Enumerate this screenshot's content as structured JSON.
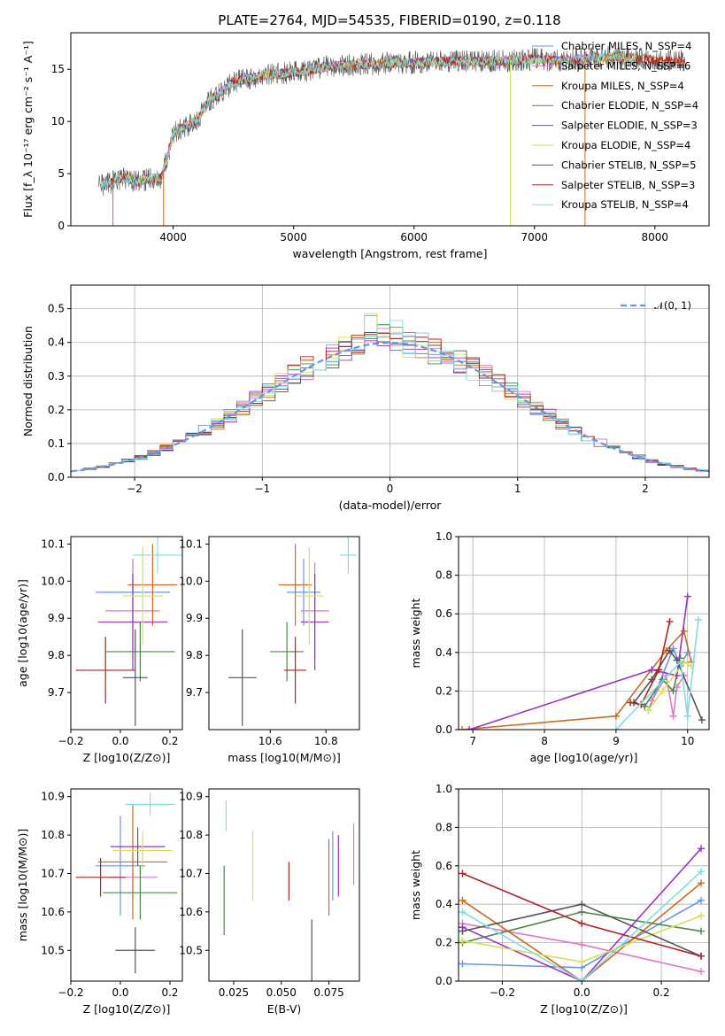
{
  "figure": {
    "title": "PLATE=2764, MJD=54535, FIBERID=0190, z=0.118",
    "colors": {
      "Chabrier MILES": "#6495ed",
      "Salpeter MILES": "#e377c2",
      "Kroupa MILES": "#d2691e",
      "Chabrier ELODIE": "#4a8a4a",
      "Salpeter ELODIE": "#9932cc",
      "Kroupa ELODIE": "#d4e157",
      "Chabrier STELIB": "#555555",
      "Salpeter STELIB": "#b22222",
      "Kroupa STELIB": "#7fdfdf",
      "normal": "#6495ed"
    }
  },
  "chart_data": [
    {
      "id": "spectrum",
      "type": "line",
      "xlabel": "wavelength [Angstrom, rest frame]",
      "ylabel": "Flux [f_λ 10⁻¹⁷ erg cm⁻² s⁻¹ A⁻¹]",
      "xlim": [
        3150,
        8450
      ],
      "ylim": [
        0,
        18.5
      ],
      "xticks": [
        4000,
        5000,
        6000,
        7000,
        8000
      ],
      "yticks": [
        0,
        5,
        10,
        15
      ],
      "grid": false,
      "legend_position": "upper right",
      "legend": [
        "Chabrier MILES, N_SSP=4",
        "Salpeter MILES, N_SSP=6",
        "Kroupa MILES, N_SSP=4",
        "Chabrier ELODIE, N_SSP=4",
        "Salpeter ELODIE, N_SSP=3",
        "Kroupa ELODIE, N_SSP=4",
        "Chabrier STELIB, N_SSP=5",
        "Salpeter STELIB, N_SSP=3",
        "Kroupa STELIB, N_SSP=4"
      ],
      "continuum": {
        "x": [
          3380,
          3500,
          3600,
          3700,
          3800,
          3900,
          3950,
          4000,
          4100,
          4200,
          4300,
          4400,
          4500,
          4700,
          4900,
          5100,
          5300,
          5500,
          5700,
          5900,
          6100,
          6300,
          6500,
          6700,
          6900,
          7000,
          7200,
          7400,
          7600,
          7800,
          8000,
          8200
        ],
        "y": [
          3.8,
          4.2,
          4.6,
          4.2,
          4.5,
          4.6,
          6.5,
          8.8,
          9.5,
          10.2,
          12.0,
          12.8,
          13.8,
          14.3,
          14.6,
          14.8,
          15.3,
          15.4,
          15.5,
          15.6,
          15.7,
          15.8,
          15.8,
          15.8,
          15.9,
          16.0,
          15.8,
          16.0,
          16.2,
          16.1,
          15.9,
          15.8
        ]
      },
      "dropouts": [
        {
          "x": 3500,
          "y": 0
        },
        {
          "x": 3920,
          "y": 0
        },
        {
          "x": 6800,
          "y": 0
        },
        {
          "x": 7420,
          "y": 0
        }
      ]
    },
    {
      "id": "residuals",
      "type": "line",
      "xlabel": "(data-model)/error",
      "ylabel": "Normed distribution",
      "xlim": [
        -2.5,
        2.5
      ],
      "ylim": [
        0,
        0.57
      ],
      "xticks": [
        -2,
        -1,
        0,
        1,
        2
      ],
      "yticks": [
        0.0,
        0.1,
        0.2,
        0.3,
        0.4,
        0.5
      ],
      "grid": true,
      "legend": [
        "𝒩(0, 1)"
      ],
      "legend_position": "upper right",
      "bin_width": 0.1
    },
    {
      "id": "age-vs-Z",
      "type": "scatter",
      "xlabel": "Z [log10(Z/Z⊙)]",
      "ylabel": "age  [log10(age/yr)]",
      "xlim": [
        -0.2,
        0.25
      ],
      "ylim": [
        9.6,
        10.12
      ],
      "xticks": [
        -0.2,
        0.0,
        0.2
      ],
      "xtick_labels": [
        "−0.2",
        "0.0",
        "0.2"
      ],
      "yticks": [
        9.7,
        9.8,
        9.9,
        10.0,
        10.1
      ],
      "grid": false,
      "points": [
        {
          "model": "Chabrier MILES",
          "x": 0.05,
          "y": 9.97,
          "xerr": 0.15,
          "yerr": 0.09
        },
        {
          "model": "Salpeter MILES",
          "x": 0.05,
          "y": 9.92,
          "xerr": 0.11,
          "yerr": 0.13
        },
        {
          "model": "Kroupa MILES",
          "x": 0.13,
          "y": 9.99,
          "xerr": 0.1,
          "yerr": 0.11
        },
        {
          "model": "Chabrier ELODIE",
          "x": 0.08,
          "y": 9.81,
          "xerr": 0.14,
          "yerr": 0.08
        },
        {
          "model": "Salpeter ELODIE",
          "x": 0.05,
          "y": 9.89,
          "xerr": 0.14,
          "yerr": 0.13
        },
        {
          "model": "Kroupa ELODIE",
          "x": 0.09,
          "y": 9.96,
          "xerr": 0.08,
          "yerr": 0.13
        },
        {
          "model": "Chabrier STELIB",
          "x": 0.06,
          "y": 9.74,
          "xerr": 0.05,
          "yerr": 0.13
        },
        {
          "model": "Salpeter STELIB",
          "x": -0.06,
          "y": 9.76,
          "xerr": 0.12,
          "yerr": 0.09
        },
        {
          "model": "Kroupa STELIB",
          "x": 0.15,
          "y": 10.07,
          "xerr": 0.1,
          "yerr": 0.05
        }
      ]
    },
    {
      "id": "age-vs-mass",
      "type": "scatter",
      "xlabel": "mass [log10(M/M⊙)]",
      "ylabel": "",
      "xlim": [
        10.38,
        10.92
      ],
      "ylim": [
        9.6,
        10.12
      ],
      "xticks": [
        10.6,
        10.8
      ],
      "yticks": [
        9.7,
        9.8,
        9.9,
        10.0,
        10.1
      ],
      "grid": false,
      "points": [
        {
          "model": "Chabrier MILES",
          "x": 10.72,
          "y": 9.97,
          "xerr": 0.06,
          "yerr": 0.09
        },
        {
          "model": "Salpeter MILES",
          "x": 10.76,
          "y": 9.92,
          "xerr": 0.05,
          "yerr": 0.13
        },
        {
          "model": "Kroupa MILES",
          "x": 10.69,
          "y": 9.99,
          "xerr": 0.06,
          "yerr": 0.11
        },
        {
          "model": "Chabrier ELODIE",
          "x": 10.66,
          "y": 9.81,
          "xerr": 0.06,
          "yerr": 0.08
        },
        {
          "model": "Salpeter ELODIE",
          "x": 10.76,
          "y": 9.89,
          "xerr": 0.05,
          "yerr": 0.13
        },
        {
          "model": "Kroupa ELODIE",
          "x": 10.74,
          "y": 9.96,
          "xerr": 0.05,
          "yerr": 0.13
        },
        {
          "model": "Chabrier STELIB",
          "x": 10.5,
          "y": 9.74,
          "xerr": 0.05,
          "yerr": 0.13
        },
        {
          "model": "Salpeter STELIB",
          "x": 10.69,
          "y": 9.76,
          "xerr": 0.04,
          "yerr": 0.09
        },
        {
          "model": "Kroupa STELIB",
          "x": 10.88,
          "y": 10.07,
          "xerr": 0.03,
          "yerr": 0.05
        }
      ]
    },
    {
      "id": "weight-vs-age",
      "type": "line",
      "xlabel": "age  [log10(age/yr)]",
      "ylabel": "mass weight",
      "xlim": [
        6.8,
        10.3
      ],
      "ylim": [
        0,
        1
      ],
      "xticks": [
        7,
        8,
        9,
        10
      ],
      "yticks": [
        0.0,
        0.2,
        0.4,
        0.6,
        0.8,
        1.0
      ],
      "grid": true,
      "series": [
        {
          "model": "Chabrier MILES",
          "x": [
            9.45,
            9.8,
            9.9,
            10.0
          ],
          "y": [
            0.1,
            0.42,
            0.33,
            0.4
          ]
        },
        {
          "model": "Salpeter MILES",
          "x": [
            9.5,
            9.7,
            9.8,
            9.85,
            9.95
          ],
          "y": [
            0.15,
            0.28,
            0.07,
            0.22,
            0.28
          ]
        },
        {
          "model": "Kroupa MILES",
          "x": [
            6.85,
            9.0,
            9.7,
            9.95,
            10.05
          ],
          "y": [
            0.0,
            0.07,
            0.41,
            0.51,
            0.35
          ]
        },
        {
          "model": "Chabrier ELODIE",
          "x": [
            9.4,
            9.65,
            9.8,
            9.9
          ],
          "y": [
            0.12,
            0.26,
            0.2,
            0.37
          ]
        },
        {
          "model": "Salpeter ELODIE",
          "x": [
            6.95,
            9.5,
            9.85,
            10.0
          ],
          "y": [
            0.0,
            0.31,
            0.28,
            0.69
          ]
        },
        {
          "model": "Kroupa ELODIE",
          "x": [
            9.45,
            9.65,
            9.95,
            10.05
          ],
          "y": [
            0.1,
            0.2,
            0.35,
            0.33
          ]
        },
        {
          "model": "Chabrier STELIB",
          "x": [
            9.25,
            9.5,
            9.75,
            9.85,
            10.2
          ],
          "y": [
            0.14,
            0.26,
            0.41,
            0.36,
            0.05
          ]
        },
        {
          "model": "Salpeter STELIB",
          "x": [
            9.2,
            9.35,
            9.6,
            9.75
          ],
          "y": [
            0.14,
            0.13,
            0.31,
            0.56
          ]
        },
        {
          "model": "Kroupa STELIB",
          "x": [
            9.0,
            9.9,
            10.0,
            10.15
          ],
          "y": [
            0.0,
            0.35,
            0.07,
            0.57
          ]
        }
      ]
    },
    {
      "id": "mass-vs-Z",
      "type": "scatter",
      "xlabel": "Z [log10(Z/Z⊙)]",
      "ylabel": "mass [log10(M/M⊙)]",
      "xlim": [
        -0.2,
        0.25
      ],
      "ylim": [
        10.42,
        10.92
      ],
      "xticks": [
        -0.2,
        0.0,
        0.2
      ],
      "xtick_labels": [
        "−0.2",
        "0.0",
        "0.2"
      ],
      "yticks": [
        10.5,
        10.6,
        10.7,
        10.8,
        10.9
      ],
      "grid": false,
      "points": [
        {
          "model": "Chabrier MILES",
          "x": 0.0,
          "y": 10.72,
          "xerr": 0.1,
          "yerr": 0.13
        },
        {
          "model": "Salpeter MILES",
          "x": 0.05,
          "y": 10.69,
          "xerr": 0.1,
          "yerr": 0.06
        },
        {
          "model": "Kroupa MILES",
          "x": 0.05,
          "y": 10.73,
          "xerr": 0.14,
          "yerr": 0.15
        },
        {
          "model": "Chabrier ELODIE",
          "x": 0.08,
          "y": 10.65,
          "xerr": 0.15,
          "yerr": 0.07
        },
        {
          "model": "Salpeter ELODIE",
          "x": 0.07,
          "y": 10.77,
          "xerr": 0.11,
          "yerr": 0.05
        },
        {
          "model": "Kroupa ELODIE",
          "x": 0.09,
          "y": 10.76,
          "xerr": 0.12,
          "yerr": 0.05
        },
        {
          "model": "Chabrier STELIB",
          "x": 0.06,
          "y": 10.5,
          "xerr": 0.08,
          "yerr": 0.06
        },
        {
          "model": "Salpeter STELIB",
          "x": -0.08,
          "y": 10.69,
          "xerr": 0.1,
          "yerr": 0.05
        },
        {
          "model": "Kroupa STELIB",
          "x": 0.12,
          "y": 10.88,
          "xerr": 0.1,
          "yerr": 0.03
        }
      ]
    },
    {
      "id": "mass-vs-ebv",
      "type": "scatter",
      "xlabel": "E(B-V)",
      "ylabel": "",
      "xlim": [
        0.012,
        0.091
      ],
      "ylim": [
        10.42,
        10.92
      ],
      "xticks": [
        0.025,
        0.05,
        0.075
      ],
      "xtick_labels": [
        "0.025",
        "0.050",
        "0.075"
      ],
      "yticks": [
        10.5,
        10.6,
        10.7,
        10.8,
        10.9
      ],
      "grid": false,
      "points": [
        {
          "model": "Chabrier MILES",
          "x": 0.077,
          "y": 10.72,
          "yerr": 0.09
        },
        {
          "model": "Salpeter MILES",
          "x": 0.088,
          "y": 10.75,
          "yerr": 0.08
        },
        {
          "model": "Kroupa MILES",
          "x": 0.075,
          "y": 10.69,
          "yerr": 0.1
        },
        {
          "model": "Chabrier ELODIE",
          "x": 0.02,
          "y": 10.63,
          "yerr": 0.09
        },
        {
          "model": "Salpeter ELODIE",
          "x": 0.08,
          "y": 10.72,
          "yerr": 0.08
        },
        {
          "model": "Kroupa ELODIE",
          "x": 0.035,
          "y": 10.72,
          "yerr": 0.09
        },
        {
          "model": "Chabrier STELIB",
          "x": 0.066,
          "y": 10.5,
          "yerr": 0.08
        },
        {
          "model": "Salpeter STELIB",
          "x": 0.054,
          "y": 10.68,
          "yerr": 0.05
        },
        {
          "model": "Kroupa STELIB",
          "x": 0.021,
          "y": 10.85,
          "yerr": 0.04
        }
      ]
    },
    {
      "id": "weight-vs-Z",
      "type": "line",
      "xlabel": "Z [log10(Z/Z⊙)]",
      "ylabel": "mass weight",
      "xlim": [
        -0.31,
        0.32
      ],
      "ylim": [
        0,
        1
      ],
      "xticks": [
        -0.2,
        0.0,
        0.2
      ],
      "xtick_labels": [
        "−0.2",
        "0.0",
        "0.2"
      ],
      "yticks": [
        0.0,
        0.2,
        0.4,
        0.6,
        0.8,
        1.0
      ],
      "grid": true,
      "series": [
        {
          "model": "Chabrier MILES",
          "x": [
            -0.3,
            0.0,
            0.3
          ],
          "y": [
            0.09,
            0.07,
            0.42
          ]
        },
        {
          "model": "Salpeter MILES",
          "x": [
            -0.3,
            0.0,
            0.3
          ],
          "y": [
            0.3,
            0.19,
            0.05
          ]
        },
        {
          "model": "Kroupa MILES",
          "x": [
            -0.3,
            0.0,
            0.3
          ],
          "y": [
            0.42,
            0.0,
            0.51
          ]
        },
        {
          "model": "Chabrier ELODIE",
          "x": [
            -0.3,
            0.0,
            0.3
          ],
          "y": [
            0.2,
            0.36,
            0.26
          ]
        },
        {
          "model": "Salpeter ELODIE",
          "x": [
            -0.3,
            0.0,
            0.3
          ],
          "y": [
            0.28,
            0.0,
            0.69
          ]
        },
        {
          "model": "Kroupa ELODIE",
          "x": [
            -0.3,
            0.0,
            0.3
          ],
          "y": [
            0.21,
            0.1,
            0.34
          ]
        },
        {
          "model": "Chabrier STELIB",
          "x": [
            -0.3,
            0.0,
            0.3
          ],
          "y": [
            0.26,
            0.4,
            0.13
          ]
        },
        {
          "model": "Salpeter STELIB",
          "x": [
            -0.3,
            0.0,
            0.3
          ],
          "y": [
            0.56,
            0.3,
            0.13
          ]
        },
        {
          "model": "Kroupa STELIB",
          "x": [
            -0.3,
            0.0,
            0.3
          ],
          "y": [
            0.36,
            0.0,
            0.57
          ]
        }
      ]
    }
  ]
}
